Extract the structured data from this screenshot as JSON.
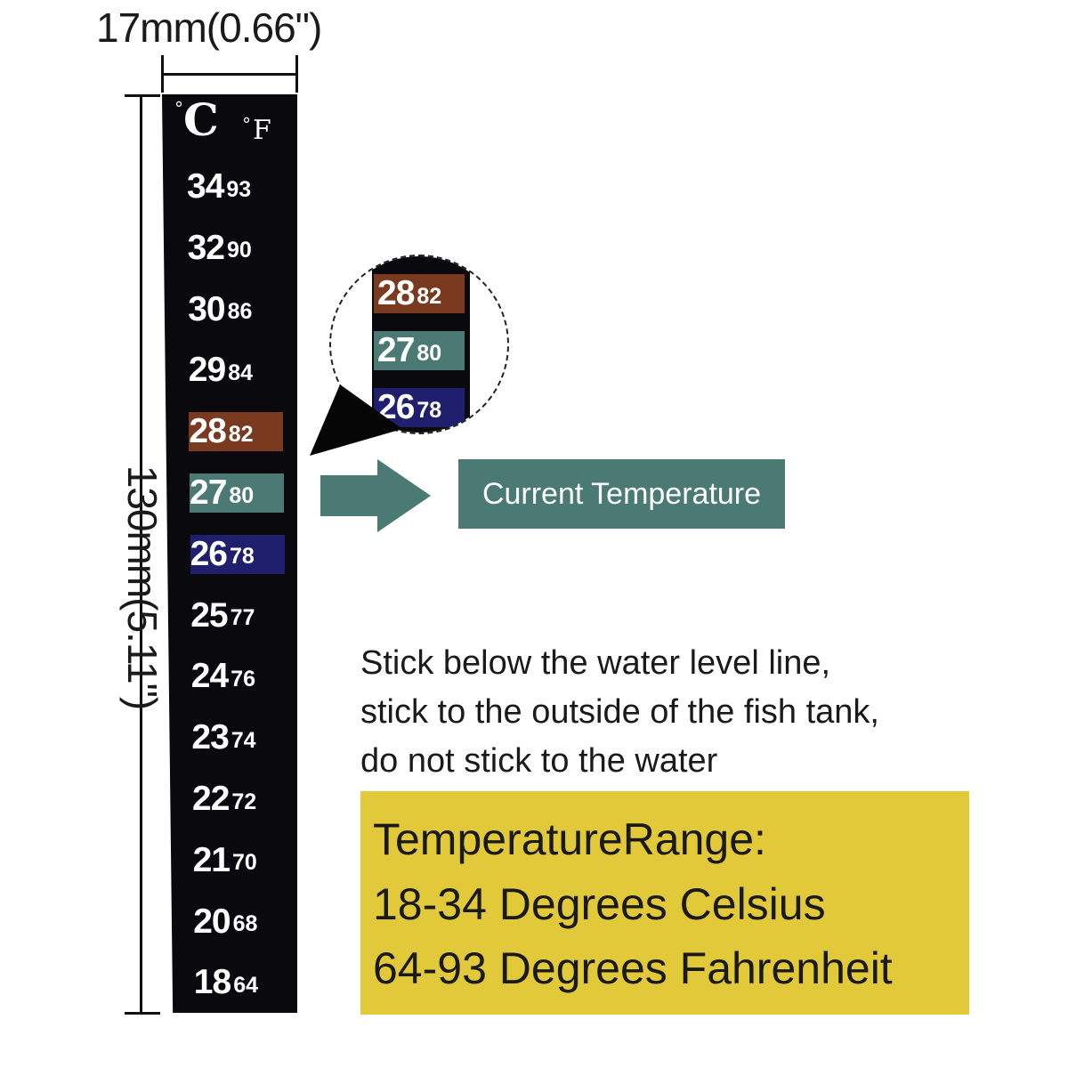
{
  "dimensions": {
    "width_label": "17mm(0.66\")",
    "height_label": "130mm(5.11\")"
  },
  "strip": {
    "unit_celsius": "C",
    "unit_fahrenheit": "F",
    "degree_symbol": "°",
    "rows": [
      {
        "c": "34",
        "f": "93"
      },
      {
        "c": "32",
        "f": "90"
      },
      {
        "c": "30",
        "f": "86"
      },
      {
        "c": "29",
        "f": "84"
      },
      {
        "c": "28",
        "f": "82",
        "color": "#7a3a1f"
      },
      {
        "c": "27",
        "f": "80",
        "color": "#4a7a73"
      },
      {
        "c": "26",
        "f": "78",
        "color": "#1f1f6e"
      },
      {
        "c": "25",
        "f": "77"
      },
      {
        "c": "24",
        "f": "76"
      },
      {
        "c": "23",
        "f": "74"
      },
      {
        "c": "22",
        "f": "72"
      },
      {
        "c": "21",
        "f": "70"
      },
      {
        "c": "20",
        "f": "68"
      },
      {
        "c": "18",
        "f": "64"
      }
    ]
  },
  "magnifier": {
    "rows": [
      {
        "c": "28",
        "f": "82",
        "color": "#7a3a1f"
      },
      {
        "c": "27",
        "f": "80",
        "color": "#4a7a73"
      },
      {
        "c": "26",
        "f": "78",
        "color": "#1f1f6e"
      }
    ]
  },
  "current_temperature": {
    "label": "Current Temperature",
    "color": "#4a7a73"
  },
  "instructions": {
    "lines": [
      "Stick below the water level line,",
      "stick to the outside of the fish tank,",
      "do not stick to the water"
    ]
  },
  "range": {
    "color": "#e2c93a",
    "title": "TemperatureRange:",
    "celsius": "18-34 Degrees Celsius",
    "fahrenheit": "64-93 Degrees Fahrenheit"
  }
}
